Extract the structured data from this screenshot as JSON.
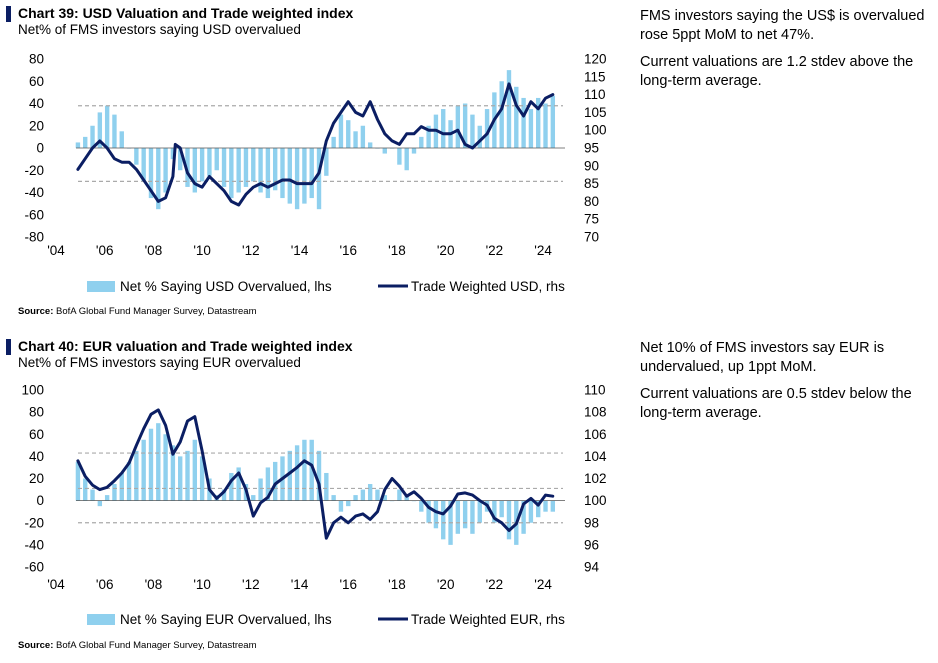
{
  "chart_data": [
    {
      "type": "bar",
      "title": "Chart 39: USD Valuation and Trade weighted index",
      "subtitle": "Net% of FMS investors saying USD overvalued",
      "source_label": "Source:",
      "source_text": "BofA Global Fund Manager Survey, Datastream",
      "x_ticks": [
        "'04",
        "'06",
        "'08",
        "'10",
        "'12",
        "'14",
        "'16",
        "'18",
        "'20",
        "'22",
        "'24"
      ],
      "xlim": [
        2004,
        2024.9
      ],
      "ylim_left": [
        -80,
        80
      ],
      "ylim_right": [
        70,
        120
      ],
      "left_ticks": [
        80,
        60,
        40,
        20,
        0,
        -20,
        -40,
        -60,
        -80
      ],
      "right_ticks": [
        120,
        115,
        110,
        105,
        100,
        95,
        90,
        85,
        80,
        75,
        70
      ],
      "stdev_lines_left": [
        38,
        -30
      ],
      "legend": {
        "bar_label": "Net % Saying USD Overvalued, lhs",
        "line_label": "Trade Weighted USD, rhs",
        "position": "bottom"
      },
      "colors": {
        "bars": "#8fd0ee",
        "line": "#0b1e63",
        "stdev": "#aaaaaa"
      },
      "series": [
        {
          "name": "Net % Saying USD Overvalued, lhs",
          "axis": "left",
          "x": [
            2004.9,
            2005.2,
            2005.5,
            2005.8,
            2006.1,
            2006.4,
            2006.7,
            2007.0,
            2007.3,
            2007.6,
            2007.9,
            2008.2,
            2008.5,
            2008.8,
            2009.1,
            2009.4,
            2009.7,
            2010.0,
            2010.3,
            2010.6,
            2010.9,
            2011.2,
            2011.5,
            2011.8,
            2012.1,
            2012.4,
            2012.7,
            2013.0,
            2013.3,
            2013.6,
            2013.9,
            2014.2,
            2014.5,
            2014.8,
            2015.1,
            2015.4,
            2015.7,
            2016.0,
            2016.3,
            2016.6,
            2016.9,
            2017.2,
            2017.5,
            2017.8,
            2018.1,
            2018.4,
            2018.7,
            2019.0,
            2019.3,
            2019.6,
            2019.9,
            2020.2,
            2020.5,
            2020.8,
            2021.1,
            2021.4,
            2021.7,
            2022.0,
            2022.3,
            2022.6,
            2022.9,
            2023.2,
            2023.5,
            2023.8,
            2024.1,
            2024.4
          ],
          "values": [
            5,
            10,
            20,
            32,
            38,
            30,
            15,
            0,
            -15,
            -30,
            -45,
            -55,
            -40,
            -10,
            -20,
            -35,
            -40,
            -30,
            -25,
            -20,
            -35,
            -45,
            -40,
            -35,
            -30,
            -40,
            -45,
            -38,
            -45,
            -50,
            -55,
            -50,
            -45,
            -55,
            -25,
            10,
            30,
            25,
            15,
            20,
            5,
            0,
            -5,
            0,
            -15,
            -20,
            -5,
            10,
            20,
            30,
            35,
            25,
            38,
            40,
            30,
            20,
            35,
            50,
            60,
            70,
            55,
            45,
            35,
            45,
            40,
            47
          ]
        },
        {
          "name": "Trade Weighted USD, rhs",
          "axis": "right",
          "x": [
            2004.9,
            2005.2,
            2005.5,
            2005.8,
            2006.1,
            2006.4,
            2006.7,
            2007.0,
            2007.3,
            2007.6,
            2007.9,
            2008.2,
            2008.5,
            2008.8,
            2008.9,
            2009.1,
            2009.4,
            2009.7,
            2010.0,
            2010.3,
            2010.6,
            2010.9,
            2011.2,
            2011.5,
            2011.8,
            2012.1,
            2012.4,
            2012.7,
            2013.0,
            2013.3,
            2013.6,
            2013.9,
            2014.2,
            2014.5,
            2014.8,
            2015.1,
            2015.4,
            2015.7,
            2016.0,
            2016.3,
            2016.6,
            2016.9,
            2017.2,
            2017.5,
            2017.8,
            2018.1,
            2018.4,
            2018.7,
            2019.0,
            2019.3,
            2019.6,
            2019.9,
            2020.2,
            2020.5,
            2020.8,
            2021.1,
            2021.4,
            2021.7,
            2022.0,
            2022.3,
            2022.6,
            2022.9,
            2023.2,
            2023.5,
            2023.8,
            2024.1,
            2024.4
          ],
          "values": [
            89,
            92,
            95,
            97,
            95,
            92,
            91,
            91,
            89,
            86,
            83,
            80,
            81,
            87,
            96,
            95,
            88,
            85,
            84,
            87,
            85,
            83,
            80,
            79,
            82,
            84,
            85,
            84,
            85,
            86,
            86,
            85,
            85,
            85,
            88,
            97,
            102,
            105,
            108,
            105,
            104,
            108,
            103,
            99,
            97,
            96,
            99,
            99,
            101,
            100,
            100,
            99,
            99,
            100,
            96,
            95,
            97,
            99,
            103,
            106,
            113,
            107,
            104,
            108,
            106,
            109,
            110
          ]
        }
      ],
      "notes": [
        "FMS investors saying the US$ is overvalued rose 5ppt MoM to net 47%.",
        "Current valuations are 1.2 stdev above the long-term average."
      ]
    },
    {
      "type": "bar",
      "title": "Chart 40: EUR valuation and Trade weighted index",
      "subtitle": "Net% of FMS investors saying EUR overvalued",
      "source_label": "Source:",
      "source_text": "BofA Global Fund Manager Survey, Datastream",
      "x_ticks": [
        "'04",
        "'06",
        "'08",
        "'10",
        "'12",
        "'14",
        "'16",
        "'18",
        "'20",
        "'22",
        "'24"
      ],
      "xlim": [
        2004,
        2024.9
      ],
      "ylim_left": [
        -60,
        100
      ],
      "ylim_right": [
        94,
        110
      ],
      "left_ticks": [
        100,
        80,
        60,
        40,
        20,
        0,
        -20,
        -40,
        -60
      ],
      "right_ticks": [
        110,
        108,
        106,
        104,
        102,
        100,
        98,
        96,
        94
      ],
      "stdev_lines_left": [
        43,
        11,
        -20
      ],
      "legend": {
        "bar_label": "Net % Saying EUR Overvalued, lhs",
        "line_label": "Trade Weighted EUR, rhs",
        "position": "bottom"
      },
      "colors": {
        "bars": "#8fd0ee",
        "line": "#0b1e63",
        "stdev": "#aaaaaa"
      },
      "series": [
        {
          "name": "Net % Saying EUR Overvalued, lhs",
          "axis": "left",
          "x": [
            2004.9,
            2005.2,
            2005.5,
            2005.8,
            2006.1,
            2006.4,
            2006.7,
            2007.0,
            2007.3,
            2007.6,
            2007.9,
            2008.2,
            2008.5,
            2008.8,
            2009.1,
            2009.4,
            2009.7,
            2010.0,
            2010.3,
            2010.6,
            2010.9,
            2011.2,
            2011.5,
            2011.8,
            2012.1,
            2012.4,
            2012.7,
            2013.0,
            2013.3,
            2013.6,
            2013.9,
            2014.2,
            2014.5,
            2014.8,
            2015.1,
            2015.4,
            2015.7,
            2016.0,
            2016.3,
            2016.6,
            2016.9,
            2017.2,
            2017.5,
            2017.8,
            2018.1,
            2018.4,
            2018.7,
            2019.0,
            2019.3,
            2019.6,
            2019.9,
            2020.2,
            2020.5,
            2020.8,
            2021.1,
            2021.4,
            2021.7,
            2022.0,
            2022.3,
            2022.6,
            2022.9,
            2023.2,
            2023.5,
            2023.8,
            2024.1,
            2024.4
          ],
          "values": [
            35,
            20,
            10,
            -5,
            5,
            15,
            25,
            35,
            45,
            55,
            65,
            70,
            60,
            50,
            40,
            45,
            55,
            40,
            20,
            5,
            10,
            25,
            30,
            15,
            5,
            20,
            30,
            35,
            40,
            45,
            50,
            55,
            55,
            45,
            25,
            5,
            -10,
            -5,
            5,
            10,
            15,
            10,
            5,
            0,
            10,
            5,
            0,
            -10,
            -20,
            -25,
            -35,
            -40,
            -30,
            -25,
            -30,
            -20,
            -10,
            -20,
            -15,
            -35,
            -40,
            -30,
            -20,
            -15,
            -10,
            -10
          ]
        },
        {
          "name": "Trade Weighted EUR, rhs",
          "axis": "right",
          "x": [
            2004.9,
            2005.2,
            2005.5,
            2005.8,
            2006.1,
            2006.4,
            2006.7,
            2007.0,
            2007.3,
            2007.6,
            2007.9,
            2008.2,
            2008.5,
            2008.8,
            2009.1,
            2009.4,
            2009.7,
            2010.0,
            2010.3,
            2010.6,
            2010.9,
            2011.2,
            2011.5,
            2011.8,
            2012.1,
            2012.4,
            2012.7,
            2013.0,
            2013.3,
            2013.6,
            2013.9,
            2014.2,
            2014.5,
            2014.8,
            2015.1,
            2015.4,
            2015.7,
            2016.0,
            2016.3,
            2016.6,
            2016.9,
            2017.2,
            2017.5,
            2017.8,
            2018.1,
            2018.4,
            2018.7,
            2019.0,
            2019.3,
            2019.6,
            2019.9,
            2020.2,
            2020.5,
            2020.8,
            2021.1,
            2021.4,
            2021.7,
            2022.0,
            2022.3,
            2022.6,
            2022.9,
            2023.2,
            2023.5,
            2023.8,
            2024.1,
            2024.4
          ],
          "values": [
            103.6,
            102.2,
            101.4,
            101.0,
            101.2,
            101.8,
            102.5,
            103.4,
            105.0,
            106.5,
            107.8,
            108.2,
            106.8,
            104.2,
            105.3,
            107.2,
            107.6,
            104.5,
            101.0,
            100.2,
            100.8,
            101.8,
            102.5,
            101.0,
            98.6,
            99.8,
            100.3,
            101.5,
            102.0,
            102.5,
            103.0,
            103.6,
            103.2,
            101.5,
            96.6,
            98.0,
            98.5,
            98.0,
            98.6,
            98.8,
            98.3,
            99.0,
            101.0,
            102.0,
            101.3,
            100.4,
            100.8,
            100.2,
            99.4,
            99.0,
            98.8,
            99.5,
            100.6,
            100.7,
            100.5,
            100.0,
            99.6,
            98.4,
            98.0,
            97.3,
            97.9,
            99.7,
            100.2,
            99.6,
            100.5,
            100.4
          ]
        }
      ],
      "notes": [
        "Net 10% of FMS investors say EUR is undervalued, up 1ppt MoM.",
        "Current valuations are 0.5 stdev below the long-term average."
      ]
    }
  ]
}
